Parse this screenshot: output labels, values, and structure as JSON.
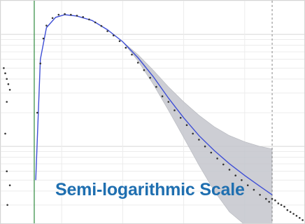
{
  "chart_data": {
    "type": "scatter",
    "title": "Semi-logarithmic Scale",
    "y_scale": "log",
    "grid": true,
    "x_range": [
      0,
      100
    ],
    "y_range": [
      0.02,
      2.0
    ],
    "reference_lines_x": [
      11,
      89
    ],
    "series": [
      {
        "kind": "observed-points",
        "color": "#333333",
        "x": [
          12,
          13,
          14,
          15,
          17,
          19,
          21,
          23,
          25,
          27,
          29,
          31,
          33,
          35,
          37,
          39,
          41,
          43,
          45,
          47,
          49,
          51,
          53,
          55,
          57,
          59,
          61,
          63,
          65,
          67,
          69,
          71,
          73,
          75,
          77,
          79,
          81,
          83,
          85,
          87,
          88
        ],
        "y": [
          0.2,
          0.55,
          0.92,
          1.2,
          1.4,
          1.5,
          1.52,
          1.5,
          1.47,
          1.43,
          1.36,
          1.28,
          1.19,
          1.07,
          0.98,
          0.87,
          0.76,
          0.66,
          0.56,
          0.48,
          0.41,
          0.34,
          0.28,
          0.25,
          0.21,
          0.18,
          0.155,
          0.13,
          0.115,
          0.1,
          0.088,
          0.078,
          0.069,
          0.062,
          0.055,
          0.05,
          0.045,
          0.041,
          0.037,
          0.034,
          0.032
        ]
      },
      {
        "kind": "fitted-line",
        "color": "#3f4fd6",
        "x": [
          11.5,
          13,
          15,
          18,
          21,
          25,
          30,
          35,
          40,
          45,
          50,
          55,
          60,
          65,
          70,
          75,
          80,
          85,
          89
        ],
        "y": [
          0.05,
          0.6,
          1.15,
          1.42,
          1.5,
          1.46,
          1.33,
          1.1,
          0.86,
          0.62,
          0.42,
          0.27,
          0.18,
          0.125,
          0.092,
          0.07,
          0.055,
          0.044,
          0.037
        ]
      },
      {
        "kind": "confidence-band",
        "color": "#c4c6cc",
        "x": [
          40,
          45,
          50,
          55,
          60,
          65,
          70,
          75,
          80,
          85,
          89
        ],
        "upper": [
          0.86,
          0.66,
          0.48,
          0.34,
          0.25,
          0.19,
          0.15,
          0.125,
          0.11,
          0.1,
          0.095
        ],
        "lower": [
          0.86,
          0.58,
          0.36,
          0.21,
          0.12,
          0.068,
          0.04,
          0.026,
          0.02,
          0.02,
          0.02
        ]
      },
      {
        "kind": "tail-points",
        "color": "#333333",
        "x": [
          89,
          90,
          91,
          92,
          93,
          94,
          95,
          96,
          97,
          98,
          99
        ],
        "y": [
          0.034,
          0.033,
          0.031,
          0.03,
          0.029,
          0.027,
          0.026,
          0.025,
          0.024,
          0.023,
          0.022
        ]
      },
      {
        "kind": "left-margin-points",
        "color": "#333333",
        "x": [
          1,
          1.5,
          2,
          2.5,
          3,
          2,
          1.5,
          2,
          3,
          2.2
        ],
        "y": [
          0.5,
          0.45,
          0.4,
          0.36,
          0.32,
          0.25,
          0.13,
          0.06,
          0.045,
          0.03
        ]
      }
    ]
  }
}
